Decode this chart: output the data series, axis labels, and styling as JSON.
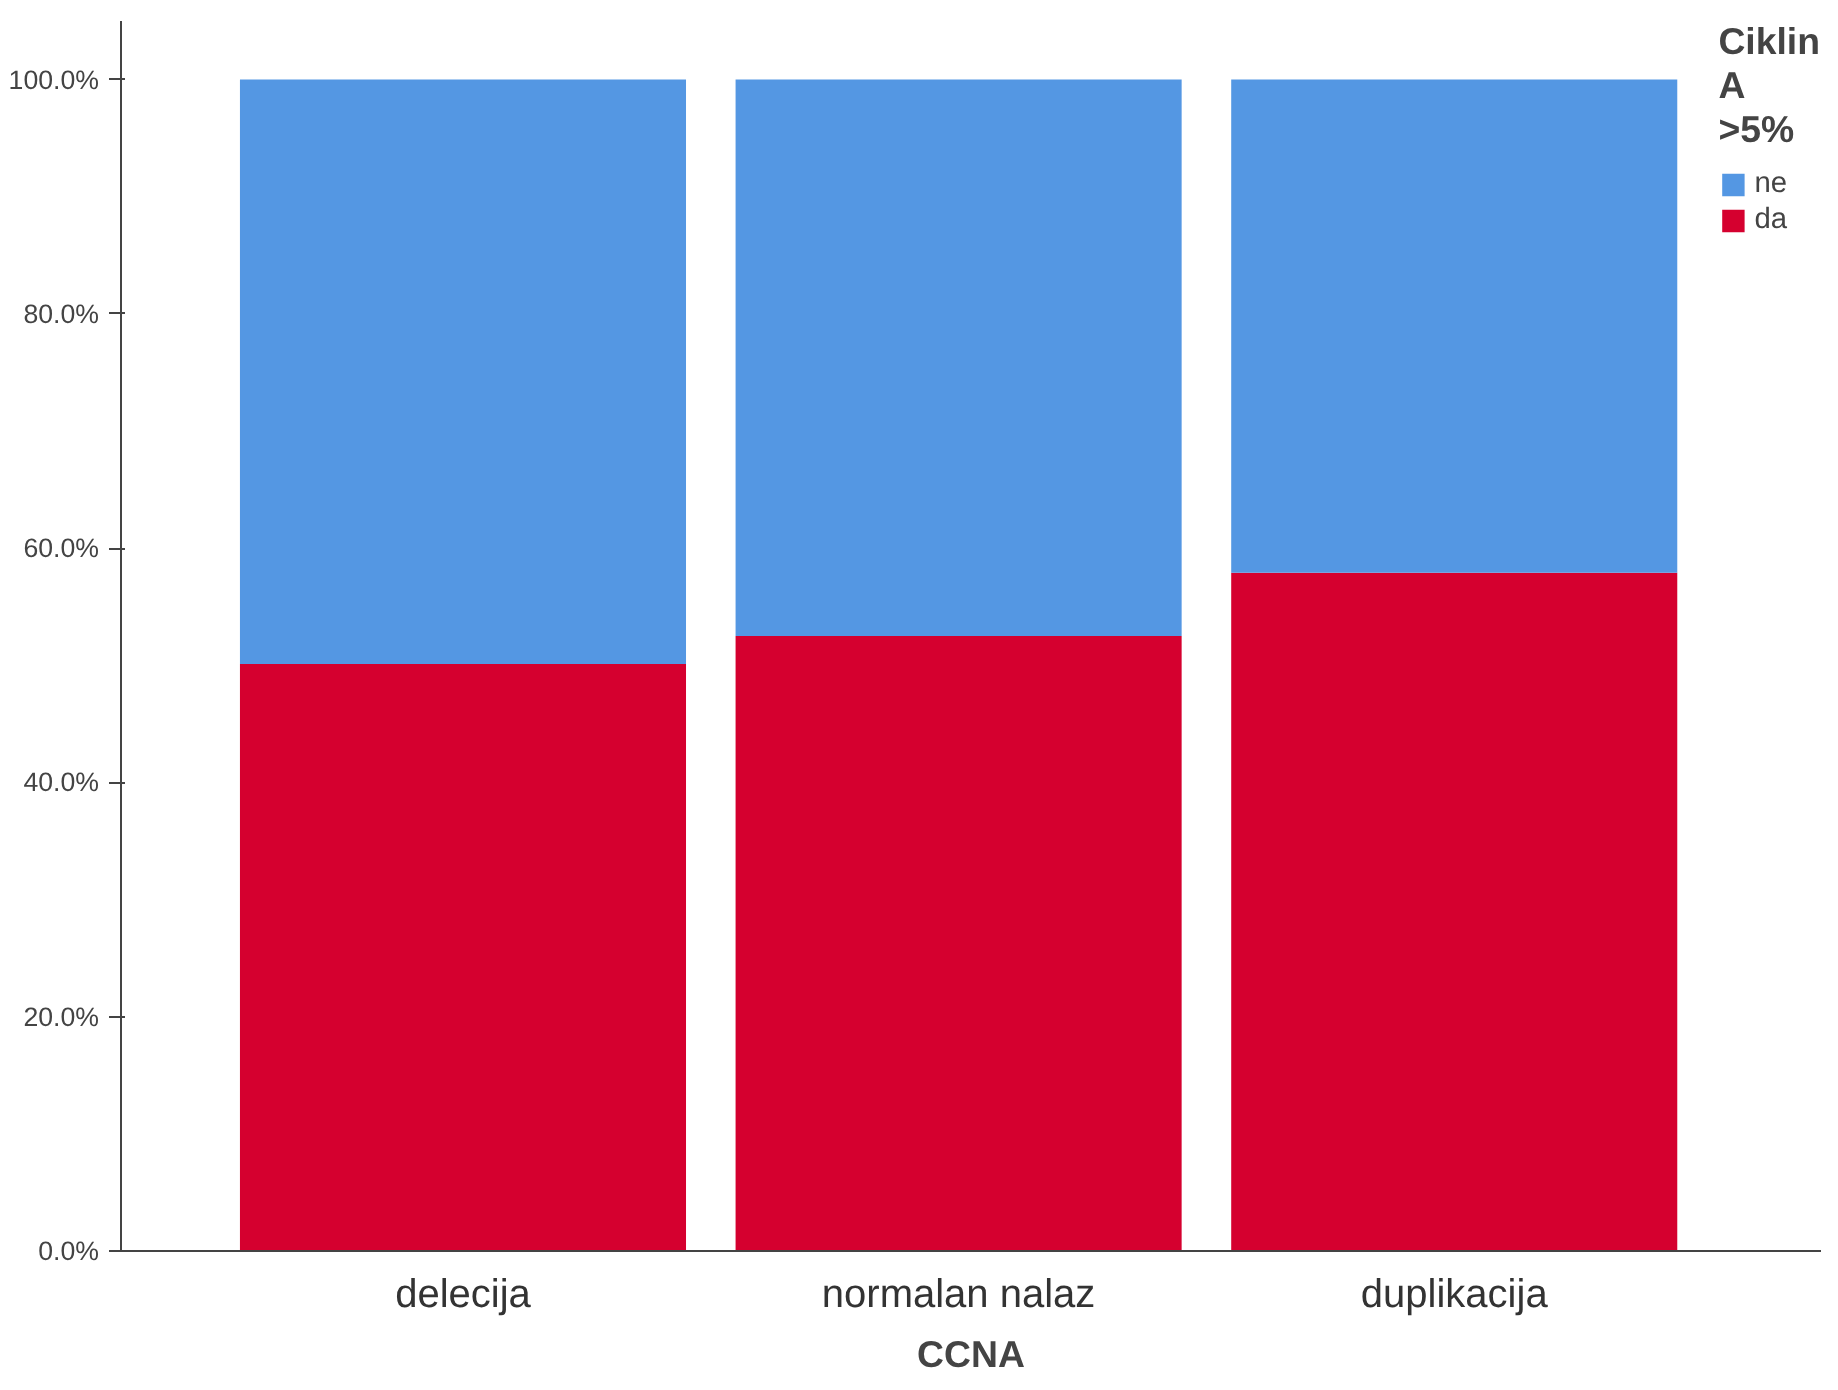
{
  "chart_data": {
    "type": "bar",
    "stacked": true,
    "xlabel": "CCNA",
    "legend_title": "Ciklin A >5%",
    "categories": [
      "delecija",
      "normalan nalaz",
      "duplikacija"
    ],
    "series": [
      {
        "name": "da",
        "color": "#d5002f",
        "values": [
          50.1,
          52.5,
          57.9
        ]
      },
      {
        "name": "ne",
        "color": "#5497e3",
        "values": [
          49.9,
          47.5,
          42.1
        ]
      }
    ],
    "ylim": [
      0,
      105
    ],
    "yticks": [
      {
        "value": 0,
        "label": "0.0%"
      },
      {
        "value": 20,
        "label": "20.0%"
      },
      {
        "value": 40,
        "label": "40.0%"
      },
      {
        "value": 60,
        "label": "60.0%"
      },
      {
        "value": 80,
        "label": "80.0%"
      },
      {
        "value": 100,
        "label": "100.0%"
      }
    ],
    "grid": false,
    "legend": "right"
  }
}
